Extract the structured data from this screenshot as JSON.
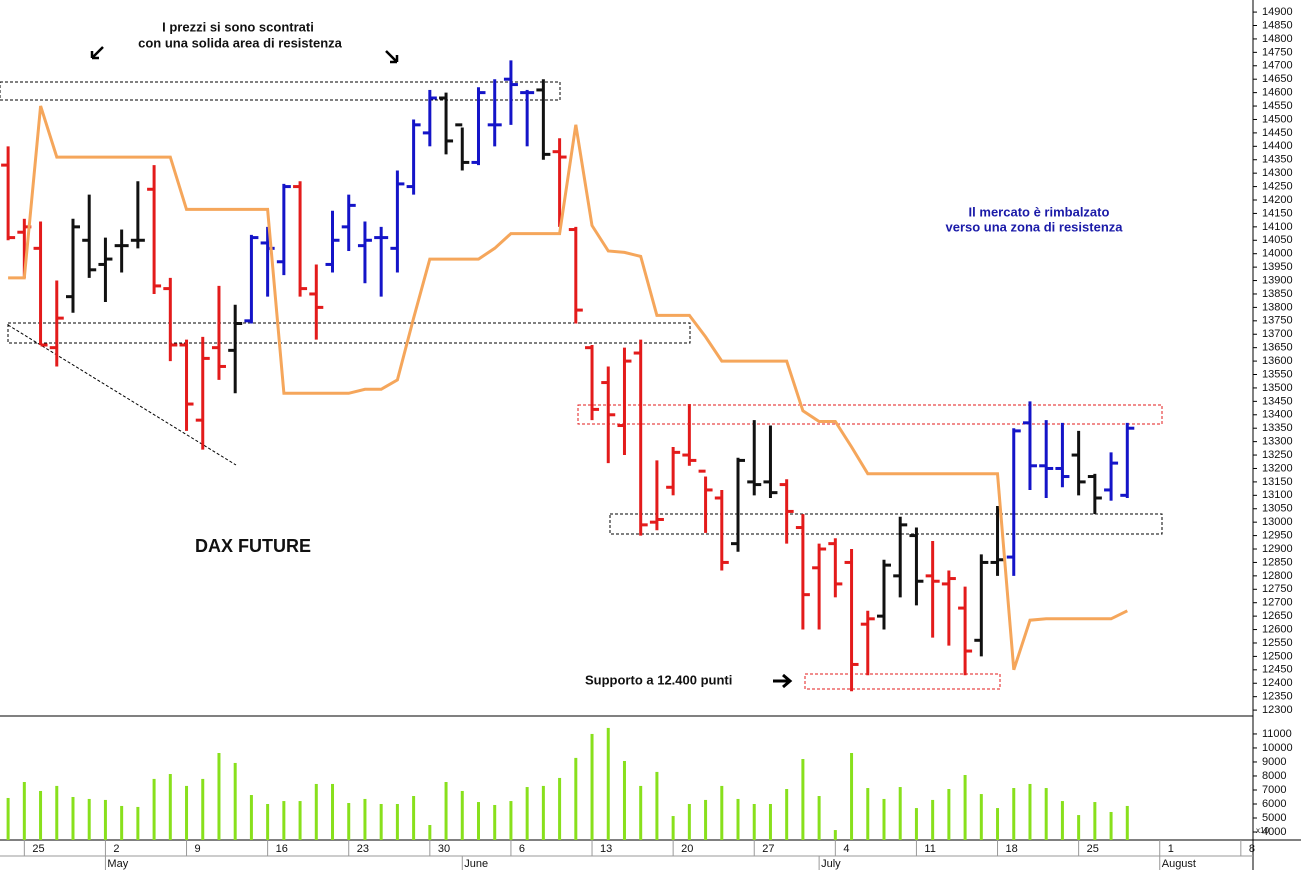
{
  "chart_data": [
    {
      "type": "ohlc",
      "title": "DAX FUTURE",
      "annotations": [
        "I prezzi si sono scontrati",
        "con una solida area di resistenza",
        "Il mercato è rimbalzato",
        "verso una zona di resistenza",
        "Supporto a 12.400 punti"
      ],
      "xlim": [
        -0.5,
        76.75
      ],
      "ylim": [
        12278,
        14945
      ],
      "yticks": [
        12300,
        12350,
        12400,
        12450,
        12500,
        12550,
        12600,
        12650,
        12700,
        12750,
        12800,
        12850,
        12900,
        12950,
        13000,
        13050,
        13100,
        13150,
        13200,
        13250,
        13300,
        13350,
        13400,
        13450,
        13500,
        13550,
        13600,
        13650,
        13700,
        13750,
        13800,
        13850,
        13900,
        13950,
        14000,
        14050,
        14100,
        14150,
        14200,
        14250,
        14300,
        14350,
        14400,
        14450,
        14500,
        14550,
        14600,
        14650,
        14700,
        14750,
        14800,
        14850,
        14900
      ],
      "series": [
        {
          "x": [
            0,
            1,
            2,
            3,
            4,
            5,
            6,
            7,
            8,
            9,
            10,
            11,
            12,
            13,
            14,
            15,
            16,
            17,
            18,
            19,
            20,
            21,
            22,
            23,
            24,
            25,
            26,
            27,
            28,
            29,
            30,
            31,
            32,
            33,
            34,
            35,
            36,
            37,
            38,
            39,
            40,
            41,
            42,
            43,
            44,
            45,
            46,
            47,
            48,
            49,
            50,
            51,
            52,
            53,
            54,
            55,
            56,
            57,
            58,
            59,
            60,
            61,
            62,
            63,
            64,
            65,
            66,
            67,
            68,
            69
          ],
          "open": [
            14330,
            14080,
            14020,
            13650,
            13840,
            14050,
            13960,
            14030,
            14050,
            14240,
            13870,
            13660,
            13380,
            13650,
            13640,
            13750,
            14040,
            13970,
            14250,
            13850,
            13960,
            14100,
            14030,
            14060,
            14020,
            14250,
            14450,
            14580,
            14480,
            14340,
            14480,
            14650,
            14600,
            14610,
            14380,
            14090,
            13650,
            13520,
            13360,
            13630,
            13000,
            13130,
            13250,
            13190,
            13090,
            12920,
            13150,
            13150,
            13140,
            12980,
            12830,
            12920,
            12850,
            12620,
            12650,
            12800,
            12950,
            12800,
            12770,
            12680,
            12560,
            12850,
            12870,
            13370,
            13210,
            13200,
            13250,
            13170,
            13120,
            13100
          ],
          "high": [
            14400,
            14130,
            14120,
            13900,
            14130,
            14220,
            14060,
            14090,
            14270,
            14330,
            13910,
            13680,
            13690,
            13880,
            13810,
            14070,
            14100,
            14260,
            14270,
            13960,
            14160,
            14220,
            14120,
            14100,
            14310,
            14500,
            14610,
            14600,
            14470,
            14620,
            14650,
            14720,
            14610,
            14650,
            14430,
            14100,
            13660,
            13580,
            13650,
            13680,
            13230,
            13280,
            13440,
            13170,
            13120,
            13240,
            13380,
            13360,
            13160,
            13030,
            12920,
            12940,
            12900,
            12670,
            12860,
            13020,
            12980,
            12930,
            12820,
            12760,
            12880,
            13060,
            13350,
            13450,
            13380,
            13370,
            13340,
            13180,
            13260,
            13370
          ],
          "low": [
            14050,
            13910,
            13660,
            13580,
            13780,
            13910,
            13820,
            13930,
            14020,
            13850,
            13600,
            13340,
            13270,
            13530,
            13480,
            13740,
            13840,
            13920,
            13840,
            13680,
            13930,
            14010,
            13890,
            13840,
            13930,
            14220,
            14400,
            14370,
            14310,
            14330,
            14400,
            14480,
            14400,
            14350,
            14100,
            13740,
            13380,
            13220,
            13250,
            12950,
            12970,
            13100,
            13210,
            12960,
            12820,
            12890,
            13100,
            13090,
            12920,
            12600,
            12600,
            12720,
            12370,
            12430,
            12600,
            12720,
            12690,
            12570,
            12540,
            12430,
            12500,
            12800,
            12800,
            13120,
            13090,
            13130,
            13100,
            13030,
            13080,
            13090
          ],
          "close": [
            14060,
            14100,
            13660,
            13760,
            14100,
            13940,
            13980,
            14030,
            14050,
            13880,
            13660,
            13440,
            13610,
            13580,
            13740,
            14060,
            14020,
            14250,
            13870,
            13800,
            14050,
            14180,
            14050,
            14060,
            14260,
            14480,
            14580,
            14420,
            14340,
            14600,
            14480,
            14630,
            14600,
            14370,
            14360,
            13790,
            13420,
            13400,
            13600,
            12990,
            13010,
            13260,
            13230,
            13120,
            12850,
            13230,
            13140,
            13110,
            13040,
            12730,
            12900,
            12770,
            12470,
            12640,
            12840,
            12990,
            12780,
            12780,
            12790,
            12520,
            12850,
            12860,
            13340,
            13210,
            13200,
            13170,
            13150,
            13090,
            13220,
            13350
          ],
          "colors": [
            "#e31b1b",
            "#e31b1b",
            "#e31b1b",
            "#e31b1b",
            "#111111",
            "#111111",
            "#111111",
            "#111111",
            "#111111",
            "#e31b1b",
            "#e31b1b",
            "#e31b1b",
            "#e31b1b",
            "#e31b1b",
            "#111111",
            "#1414c8",
            "#1414c8",
            "#1414c8",
            "#e31b1b",
            "#e31b1b",
            "#1414c8",
            "#1414c8",
            "#1414c8",
            "#1414c8",
            "#1414c8",
            "#1414c8",
            "#1414c8",
            "#111111",
            "#111111",
            "#1414c8",
            "#1414c8",
            "#1414c8",
            "#1414c8",
            "#111111",
            "#e31b1b",
            "#e31b1b",
            "#e31b1b",
            "#e31b1b",
            "#e31b1b",
            "#e31b1b",
            "#e31b1b",
            "#e31b1b",
            "#e31b1b",
            "#e31b1b",
            "#e31b1b",
            "#111111",
            "#111111",
            "#111111",
            "#e31b1b",
            "#e31b1b",
            "#e31b1b",
            "#e31b1b",
            "#e31b1b",
            "#e31b1b",
            "#111111",
            "#111111",
            "#111111",
            "#e31b1b",
            "#e31b1b",
            "#e31b1b",
            "#111111",
            "#111111",
            "#1414c8",
            "#1414c8",
            "#1414c8",
            "#1414c8",
            "#111111",
            "#111111",
            "#1414c8",
            "#1414c8"
          ]
        },
        {
          "color": "#f5a65b",
          "x": [
            0,
            1,
            2,
            3,
            4,
            5,
            6,
            7,
            8,
            9,
            10,
            11,
            12,
            13,
            14,
            15,
            16,
            17,
            18,
            19,
            20,
            21,
            22,
            23,
            24,
            25,
            26,
            27,
            28,
            29,
            30,
            31,
            32,
            33,
            34,
            35,
            36,
            37,
            38,
            39,
            40,
            41,
            42,
            43,
            44,
            45,
            46,
            47,
            48,
            49,
            50,
            51,
            52,
            53,
            54,
            55,
            56,
            57,
            58,
            59,
            60,
            61,
            62,
            63,
            64,
            65,
            66,
            67,
            68,
            69
          ],
          "values": [
            13910,
            13910,
            14550,
            14360,
            14360,
            14360,
            14360,
            14360,
            14360,
            14360,
            14360,
            14165,
            14165,
            14165,
            14165,
            14165,
            14165,
            13480,
            13480,
            13480,
            13480,
            13480,
            13495,
            13495,
            13530,
            13760,
            13980,
            13980,
            13980,
            13980,
            14020,
            14075,
            14075,
            14075,
            14075,
            14480,
            14105,
            14010,
            14005,
            13990,
            13770,
            13770,
            13770,
            13690,
            13600,
            13600,
            13600,
            13600,
            13600,
            13415,
            13375,
            13375,
            13280,
            13180,
            13180,
            13180,
            13180,
            13180,
            13180,
            13180,
            13180,
            13180,
            12450,
            12635,
            12640,
            12640,
            12640,
            12640,
            12640,
            12670
          ]
        }
      ]
    },
    {
      "type": "bar",
      "color": "#88e01c",
      "y_label": "x10",
      "xlim": [
        -0.5,
        76.75
      ],
      "ylim": [
        3430,
        12210
      ],
      "yticks": [
        4000,
        5000,
        6000,
        7000,
        8000,
        9000,
        10000,
        11000
      ],
      "xticks": [
        {
          "value": 1,
          "label": "25"
        },
        {
          "value": 6,
          "label": "2"
        },
        {
          "value": 11,
          "label": "9"
        },
        {
          "value": 16,
          "label": "16"
        },
        {
          "value": 21,
          "label": "23"
        },
        {
          "value": 26,
          "label": "30"
        },
        {
          "value": 31,
          "label": "6"
        },
        {
          "value": 36,
          "label": "13"
        },
        {
          "value": 41,
          "label": "20"
        },
        {
          "value": 46,
          "label": "27"
        },
        {
          "value": 51,
          "label": "4"
        },
        {
          "value": 56,
          "label": "11"
        },
        {
          "value": 61,
          "label": "18"
        },
        {
          "value": 66,
          "label": "25"
        },
        {
          "value": 71,
          "label": "1"
        },
        {
          "value": 76,
          "label": "8"
        }
      ],
      "months": [
        {
          "value": 6,
          "label": "May"
        },
        {
          "value": 28,
          "label": "June"
        },
        {
          "value": 50,
          "label": "July"
        },
        {
          "value": 71,
          "label": "August"
        }
      ],
      "x": [
        0,
        1,
        2,
        3,
        4,
        5,
        6,
        7,
        8,
        9,
        10,
        11,
        12,
        13,
        14,
        15,
        16,
        17,
        18,
        19,
        20,
        21,
        22,
        23,
        24,
        25,
        26,
        27,
        28,
        29,
        30,
        31,
        32,
        33,
        34,
        35,
        36,
        37,
        38,
        39,
        40,
        41,
        42,
        43,
        44,
        45,
        46,
        47,
        48,
        49,
        50,
        51,
        52,
        53,
        54,
        55,
        56,
        57,
        58,
        59,
        60,
        61,
        62,
        63,
        64,
        65,
        66,
        67,
        68,
        69
      ],
      "values": [
        6430,
        7570,
        6930,
        7290,
        6500,
        6360,
        6290,
        5860,
        5790,
        7790,
        8140,
        7290,
        7790,
        9640,
        8930,
        6640,
        6000,
        6210,
        6210,
        7430,
        7430,
        6070,
        6360,
        6000,
        6000,
        6570,
        4500,
        7570,
        6930,
        6140,
        5930,
        6210,
        7210,
        7290,
        7860,
        9290,
        11000,
        11430,
        9070,
        7290,
        8290,
        5140,
        6000,
        6290,
        7290,
        6360,
        6000,
        6000,
        7070,
        9210,
        6570,
        4140,
        9640,
        7140,
        6360,
        7210,
        5710,
        6290,
        7070,
        8070,
        6710,
        5710,
        7140,
        7430,
        7140,
        6210,
        5210,
        6140,
        5430,
        5860
      ]
    }
  ]
}
